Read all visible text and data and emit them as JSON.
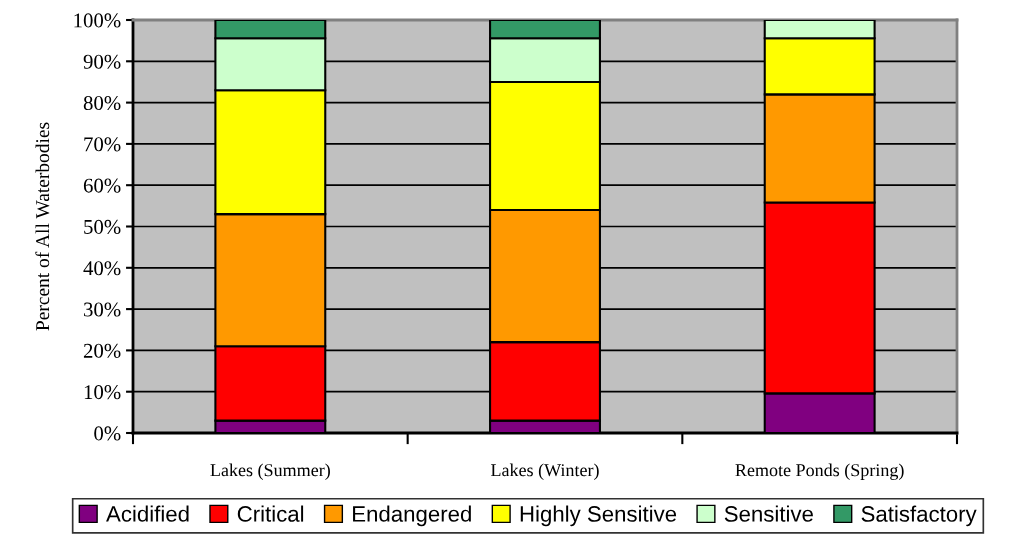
{
  "chart_data": {
    "type": "bar",
    "stacked": true,
    "ylabel": "Percent of All Waterbodies",
    "categories": [
      "Lakes (Summer)",
      "Lakes (Winter)",
      "Remote Ponds (Spring)"
    ],
    "series": [
      {
        "name": "Acidified",
        "color": "#800080",
        "values": [
          3,
          3,
          9.6
        ]
      },
      {
        "name": "Critical",
        "color": "#ff0000",
        "values": [
          18,
          19,
          46.2
        ]
      },
      {
        "name": "Endangered",
        "color": "#ff9900",
        "values": [
          32,
          32,
          26.2
        ]
      },
      {
        "name": "Highly Sensitive",
        "color": "#ffff00",
        "values": [
          30,
          31,
          13.6
        ]
      },
      {
        "name": "Sensitive",
        "color": "#ccffcc",
        "values": [
          12.6,
          10.6,
          4.4
        ]
      },
      {
        "name": "Satisfactory",
        "color": "#339966",
        "values": [
          4.4,
          4.4,
          0
        ]
      }
    ],
    "ylim": [
      0,
      100
    ],
    "yticks": [
      {
        "value": 0,
        "label": "0%"
      },
      {
        "value": 10,
        "label": "10%"
      },
      {
        "value": 20,
        "label": "20%"
      },
      {
        "value": 30,
        "label": "30%"
      },
      {
        "value": 40,
        "label": "40%"
      },
      {
        "value": 50,
        "label": "50%"
      },
      {
        "value": 60,
        "label": "60%"
      },
      {
        "value": 70,
        "label": "70%"
      },
      {
        "value": 80,
        "label": "80%"
      },
      {
        "value": 90,
        "label": "90%"
      },
      {
        "value": 100,
        "label": "100%"
      }
    ],
    "grid": "y",
    "legend": "bottom"
  }
}
